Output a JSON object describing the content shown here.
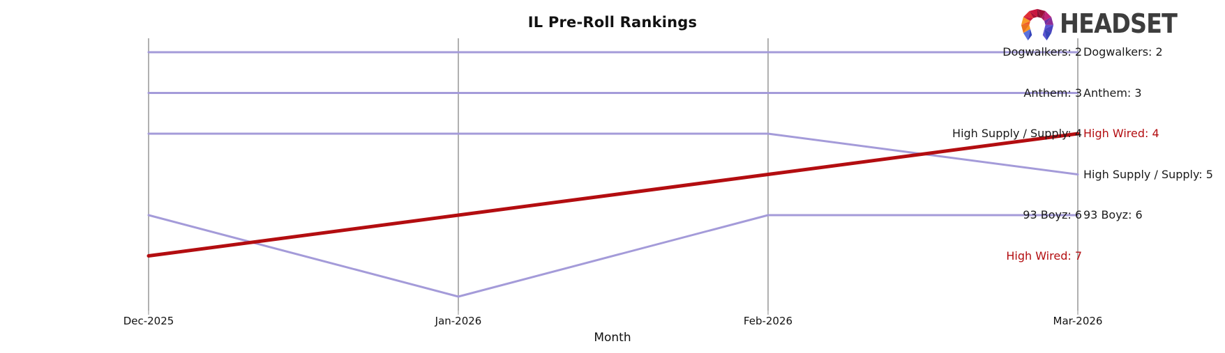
{
  "title": "IL Pre-Roll Rankings",
  "xlabel": "Month",
  "logo": {
    "text": "HEADSET"
  },
  "colors": {
    "default_line": "#a49bd9",
    "highlight_line": "#b30d10",
    "axis": "#b0b0b0",
    "label_text": "#1a1a1a",
    "highlight_text": "#b30d10"
  },
  "chart_data": {
    "type": "line",
    "subtype": "bump-ranking-chart",
    "title": "IL Pre-Roll Rankings",
    "xlabel": "Month",
    "x": [
      "Dec-2025",
      "Jan-2026",
      "Feb-2026",
      "Mar-2026"
    ],
    "y_axis": {
      "meaning": "rank",
      "inverted": true,
      "visible_rank_range": [
        2,
        8
      ]
    },
    "legend": "none",
    "grid": "vertical-month-axes-only",
    "series": [
      {
        "name": "Dogwalkers",
        "ranks": [
          2,
          2,
          2,
          2
        ],
        "color": "#a49bd9",
        "line_width": 3,
        "label_left": "Dogwalkers: 2",
        "label_right": "Dogwalkers: 2",
        "label_color": "#1a1a1a"
      },
      {
        "name": "Anthem",
        "ranks": [
          3,
          3,
          3,
          3
        ],
        "color": "#a49bd9",
        "line_width": 3,
        "label_left": "Anthem: 3",
        "label_right": "Anthem: 3",
        "label_color": "#1a1a1a"
      },
      {
        "name": "High Supply / Supply",
        "ranks": [
          4,
          4,
          4,
          5
        ],
        "color": "#a49bd9",
        "line_width": 3,
        "label_left": "High Supply / Supply: 4",
        "label_right": "High Supply / Supply: 5",
        "label_color": "#1a1a1a"
      },
      {
        "name": "93 Boyz",
        "ranks": [
          6,
          8,
          6,
          6
        ],
        "color": "#a49bd9",
        "line_width": 3,
        "label_left": "93 Boyz: 6",
        "label_right": "93 Boyz: 6",
        "label_color": "#1a1a1a"
      },
      {
        "name": "High Wired",
        "ranks": [
          7,
          6,
          5,
          4
        ],
        "color": "#b30d10",
        "line_width": 5,
        "highlight": true,
        "label_left": "High Wired: 7",
        "label_right": "High Wired: 4",
        "label_color": "#b30d10"
      }
    ]
  }
}
